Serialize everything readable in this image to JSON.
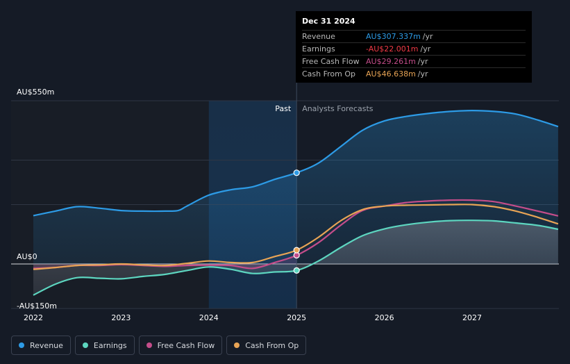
{
  "chart_data": {
    "type": "line",
    "title": "",
    "x_ticks": [
      "2022",
      "2023",
      "2024",
      "2025",
      "2026",
      "2027"
    ],
    "x_range": [
      2021.78,
      2027.98
    ],
    "y_range": [
      -170,
      560
    ],
    "y_tick_labels": [
      {
        "value": 550,
        "label": "AU$550m"
      },
      {
        "value": 0,
        "label": "AU$0"
      },
      {
        "value": -150,
        "label": "-AU$150m"
      }
    ],
    "gridlines": [
      550,
      350,
      200,
      0,
      -150
    ],
    "past_label": "Past",
    "forecast_label": "Analysts Forecasts",
    "divider_x": 2025.0,
    "highlight_range": [
      2024.0,
      2025.0
    ],
    "series": [
      {
        "name": "Revenue",
        "color": "#2d9be6",
        "points": [
          [
            2022.0,
            163
          ],
          [
            2022.25,
            178
          ],
          [
            2022.5,
            193
          ],
          [
            2022.75,
            188
          ],
          [
            2023.0,
            180
          ],
          [
            2023.25,
            178
          ],
          [
            2023.5,
            178
          ],
          [
            2023.65,
            180
          ],
          [
            2023.75,
            195
          ],
          [
            2024.0,
            232
          ],
          [
            2024.25,
            250
          ],
          [
            2024.5,
            260
          ],
          [
            2024.75,
            285
          ],
          [
            2025.0,
            307.3
          ],
          [
            2025.25,
            340
          ],
          [
            2025.5,
            395
          ],
          [
            2025.75,
            450
          ],
          [
            2026.0,
            482
          ],
          [
            2026.25,
            497
          ],
          [
            2026.5,
            507
          ],
          [
            2026.75,
            514
          ],
          [
            2027.0,
            517
          ],
          [
            2027.25,
            514
          ],
          [
            2027.5,
            505
          ],
          [
            2027.75,
            485
          ],
          [
            2027.98,
            463
          ]
        ],
        "fill": true
      },
      {
        "name": "Earnings",
        "color": "#5dd6c0",
        "points": [
          [
            2022.0,
            -105
          ],
          [
            2022.25,
            -68
          ],
          [
            2022.5,
            -46
          ],
          [
            2022.75,
            -48
          ],
          [
            2023.0,
            -50
          ],
          [
            2023.25,
            -42
          ],
          [
            2023.5,
            -35
          ],
          [
            2023.75,
            -22
          ],
          [
            2024.0,
            -10
          ],
          [
            2024.25,
            -18
          ],
          [
            2024.5,
            -32
          ],
          [
            2024.75,
            -27
          ],
          [
            2025.0,
            -22.0
          ],
          [
            2025.25,
            10
          ],
          [
            2025.5,
            55
          ],
          [
            2025.75,
            95
          ],
          [
            2026.0,
            118
          ],
          [
            2026.25,
            132
          ],
          [
            2026.5,
            141
          ],
          [
            2026.75,
            146
          ],
          [
            2027.0,
            147
          ],
          [
            2027.25,
            145
          ],
          [
            2027.5,
            138
          ],
          [
            2027.75,
            130
          ],
          [
            2027.98,
            117
          ]
        ],
        "fill": true
      },
      {
        "name": "Free Cash Flow",
        "color": "#c44d8a",
        "points": [
          [
            2022.0,
            -15
          ],
          [
            2022.25,
            -12
          ],
          [
            2022.5,
            -5
          ],
          [
            2022.75,
            -5
          ],
          [
            2023.0,
            -2
          ],
          [
            2023.25,
            -5
          ],
          [
            2023.5,
            -8
          ],
          [
            2023.75,
            -5
          ],
          [
            2024.0,
            -4
          ],
          [
            2024.25,
            -5
          ],
          [
            2024.5,
            -15
          ],
          [
            2024.75,
            5
          ],
          [
            2025.0,
            29.3
          ],
          [
            2025.25,
            72
          ],
          [
            2025.5,
            130
          ],
          [
            2025.75,
            180
          ],
          [
            2026.0,
            195
          ],
          [
            2026.25,
            207
          ],
          [
            2026.5,
            212
          ],
          [
            2026.75,
            215
          ],
          [
            2027.0,
            215
          ],
          [
            2027.25,
            210
          ],
          [
            2027.5,
            195
          ],
          [
            2027.75,
            178
          ],
          [
            2027.98,
            162
          ]
        ],
        "fill": false
      },
      {
        "name": "Cash From Op",
        "color": "#e8a455",
        "points": [
          [
            2022.0,
            -18
          ],
          [
            2022.25,
            -12
          ],
          [
            2022.5,
            -5
          ],
          [
            2022.75,
            -3
          ],
          [
            2023.0,
            0
          ],
          [
            2023.25,
            -3
          ],
          [
            2023.5,
            -5
          ],
          [
            2023.75,
            2
          ],
          [
            2024.0,
            10
          ],
          [
            2024.25,
            5
          ],
          [
            2024.5,
            5
          ],
          [
            2024.75,
            25
          ],
          [
            2025.0,
            46.6
          ],
          [
            2025.25,
            90
          ],
          [
            2025.5,
            145
          ],
          [
            2025.75,
            183
          ],
          [
            2026.0,
            195
          ],
          [
            2026.25,
            198
          ],
          [
            2026.5,
            199
          ],
          [
            2026.75,
            200
          ],
          [
            2027.0,
            200
          ],
          [
            2027.25,
            193
          ],
          [
            2027.5,
            178
          ],
          [
            2027.75,
            157
          ],
          [
            2027.98,
            135
          ]
        ],
        "fill": false
      }
    ],
    "highlight_points": [
      {
        "series": "Revenue",
        "x": 2025.0,
        "y": 307.3
      },
      {
        "series": "Earnings",
        "x": 2025.0,
        "y": -22.0
      },
      {
        "series": "Free Cash Flow",
        "x": 2025.0,
        "y": 29.3
      },
      {
        "series": "Cash From Op",
        "x": 2025.0,
        "y": 46.6
      }
    ]
  },
  "tooltip": {
    "date": "Dec 31 2024",
    "unit": "/yr",
    "rows": [
      {
        "label": "Revenue",
        "value": "AU$307.337m",
        "color": "#2d9be6"
      },
      {
        "label": "Earnings",
        "value": "-AU$22.001m",
        "color": "#f23a46"
      },
      {
        "label": "Free Cash Flow",
        "value": "AU$29.261m",
        "color": "#c44d8a"
      },
      {
        "label": "Cash From Op",
        "value": "AU$46.638m",
        "color": "#e8a455"
      }
    ]
  },
  "legend": [
    {
      "label": "Revenue",
      "color": "#2d9be6"
    },
    {
      "label": "Earnings",
      "color": "#5dd6c0"
    },
    {
      "label": "Free Cash Flow",
      "color": "#c44d8a"
    },
    {
      "label": "Cash From Op",
      "color": "#e8a455"
    }
  ]
}
